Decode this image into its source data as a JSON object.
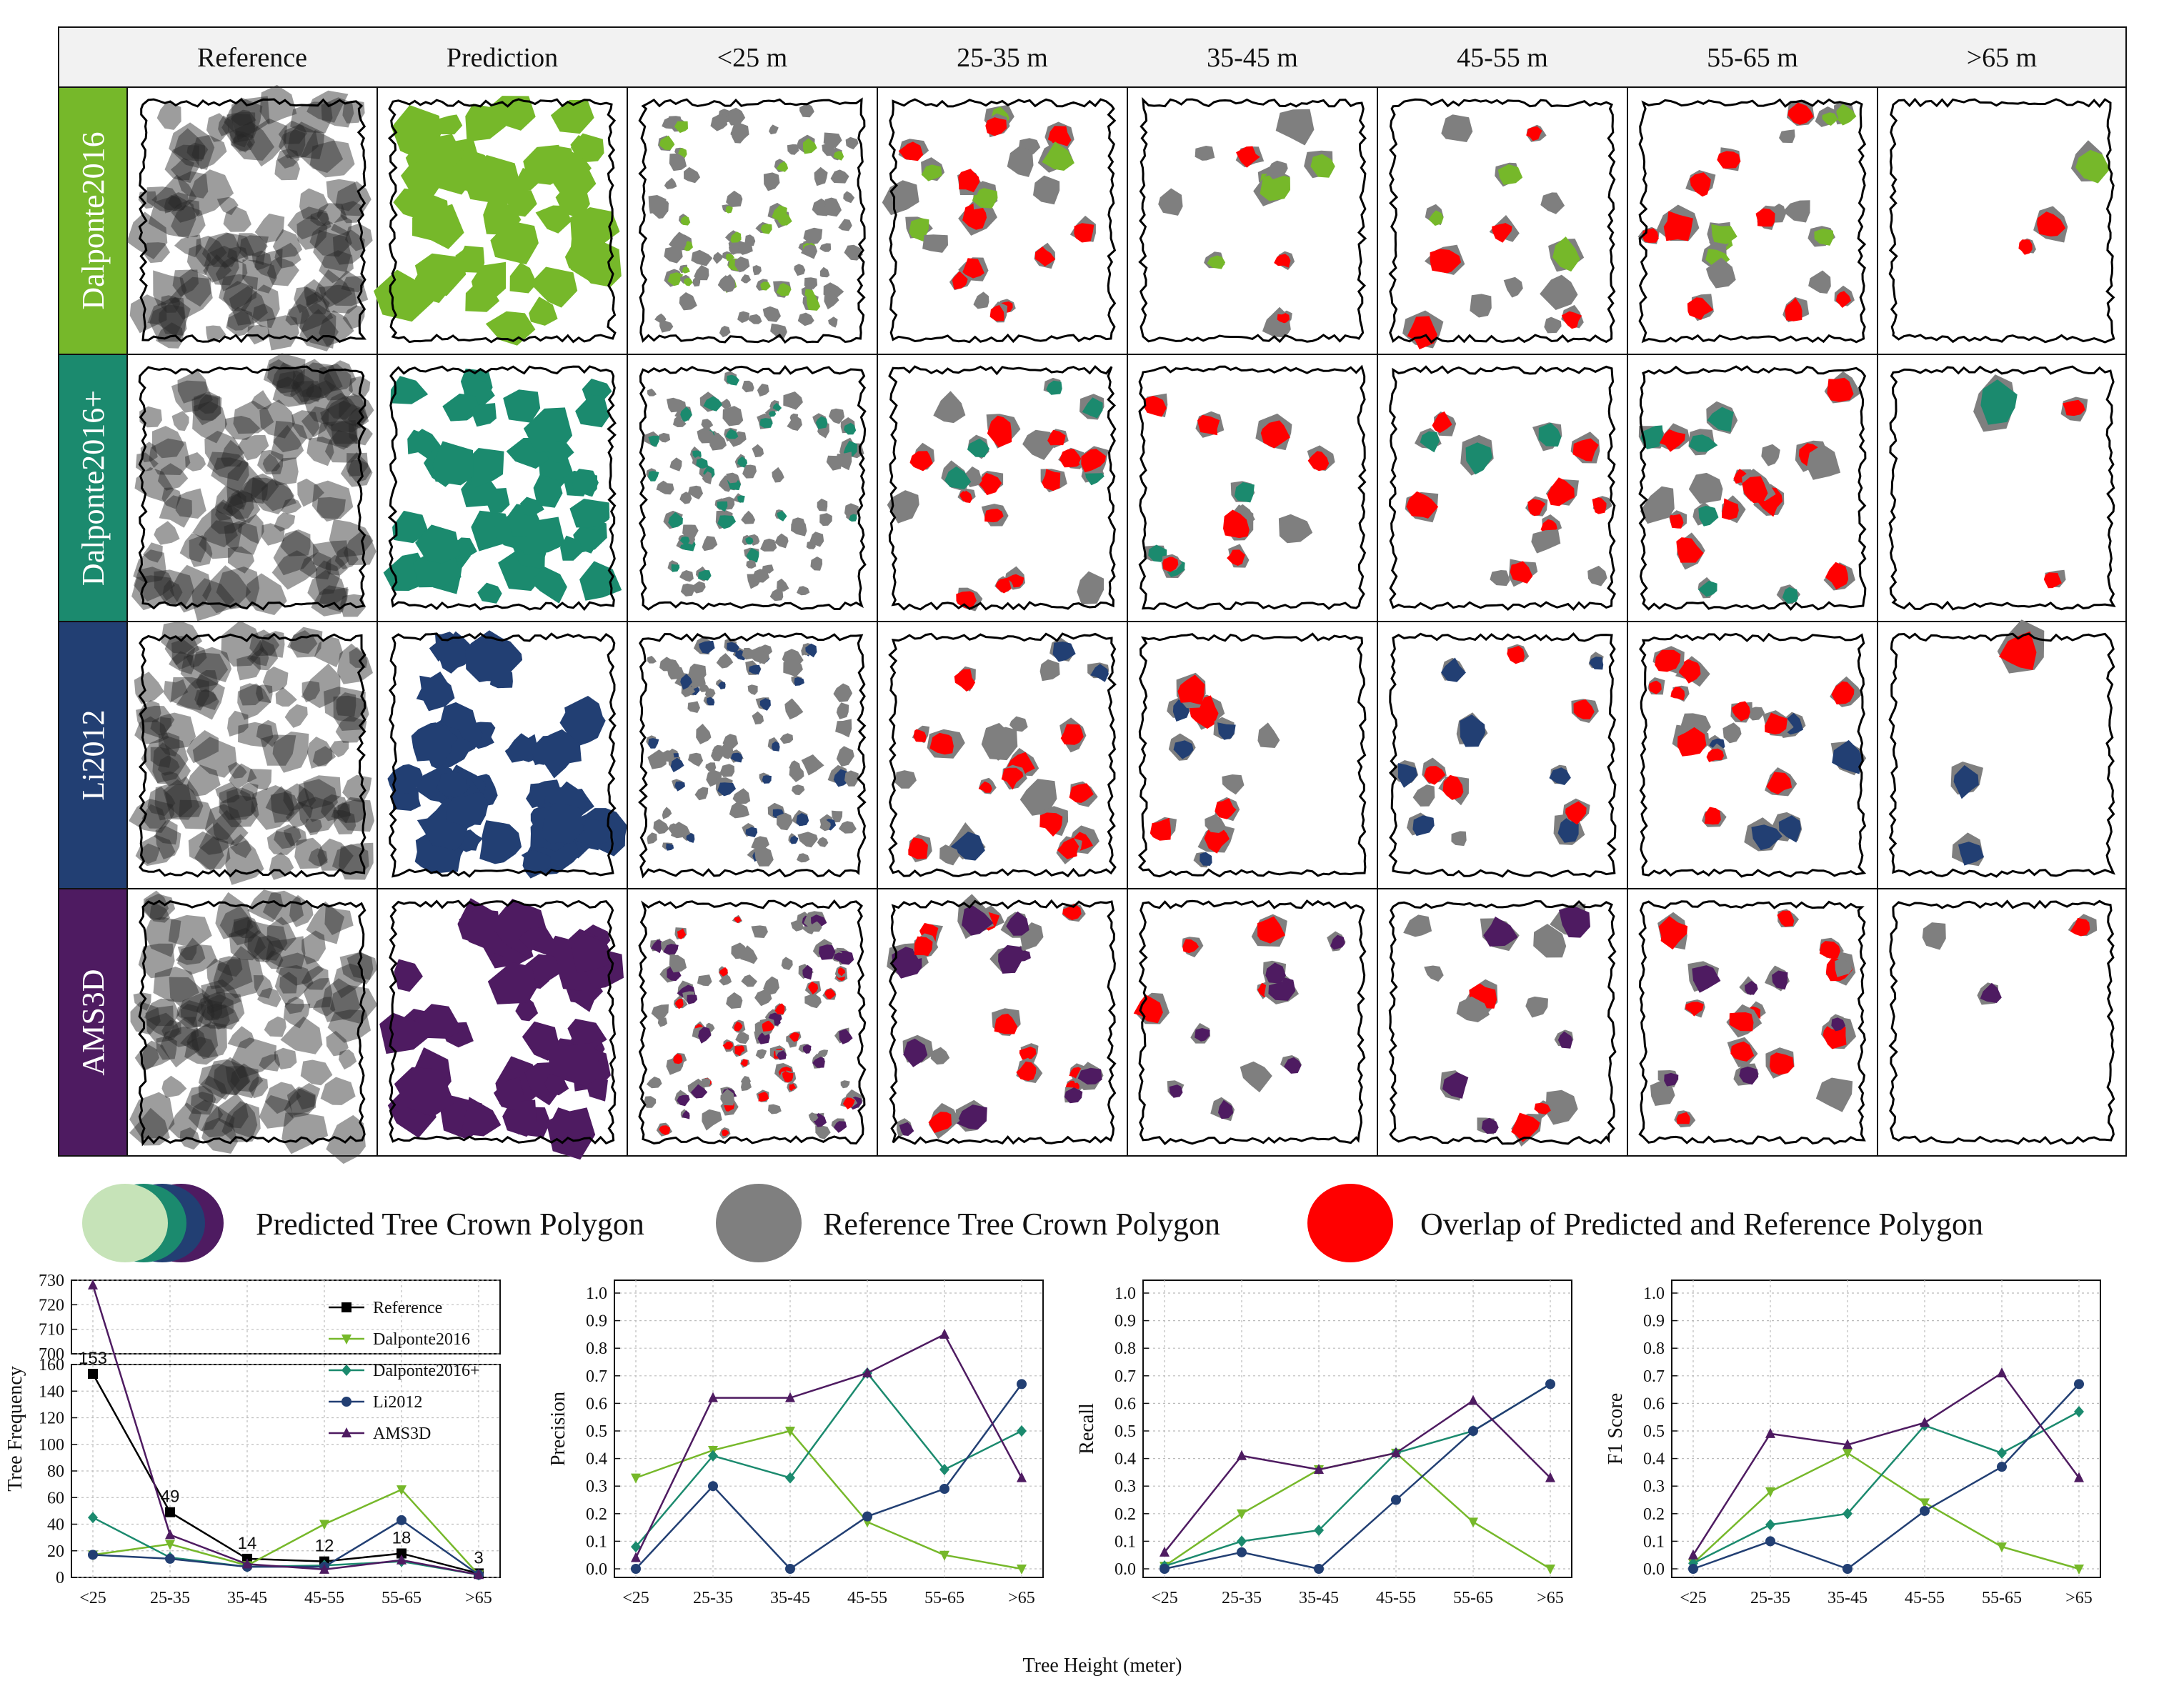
{
  "grid": {
    "headers": [
      "Reference",
      "Prediction",
      "<25 m",
      "25-35 m",
      "35-45 m",
      "45-55 m",
      "55-65 m",
      ">65 m"
    ],
    "rows": [
      {
        "label": "Dalponte2016",
        "color": "#76b82a"
      },
      {
        "label": "Dalponte2016+",
        "color": "#1b8a6e"
      },
      {
        "label": "Li2012",
        "color": "#223f73"
      },
      {
        "label": "AMS3D",
        "color": "#4e1b61"
      }
    ],
    "colors": {
      "reference": "#7f7f7f",
      "overlap": "#ff0000",
      "reference_dark": "#262626"
    }
  },
  "legend": {
    "predicted": "Predicted Tree Crown Polygon",
    "reference": "Reference Tree Crown Polygon",
    "overlap": "Overlap of Predicted and Reference Polygon",
    "predicted_swatch_colors": [
      "#c6e3b8",
      "#1b8a6e",
      "#223f73",
      "#4e1b61"
    ]
  },
  "chart_data": [
    {
      "type": "line",
      "ylabel": "Tree Frequency",
      "categories": [
        "<25",
        "25-35",
        "35-45",
        "45-55",
        "55-65",
        ">65"
      ],
      "y_scale": "broken",
      "ylim_lower": [
        0,
        160
      ],
      "ylim_upper": [
        700,
        730
      ],
      "yticks": [
        0,
        20,
        40,
        60,
        80,
        100,
        120,
        140,
        160,
        700,
        710,
        720,
        730
      ],
      "grid": true,
      "legend_position": "top-right",
      "series": [
        {
          "name": "Reference",
          "color": "#000000",
          "marker": "square",
          "values": [
            153,
            49,
            14,
            12,
            18,
            3
          ]
        },
        {
          "name": "Dalponte2016",
          "color": "#76b82a",
          "marker": "triangle-down",
          "values": [
            17,
            25,
            9,
            40,
            66,
            2
          ]
        },
        {
          "name": "Dalponte2016+",
          "color": "#1b8a6e",
          "marker": "diamond",
          "values": [
            45,
            15,
            8,
            9,
            12,
            2
          ]
        },
        {
          "name": "Li2012",
          "color": "#223f73",
          "marker": "circle",
          "values": [
            17,
            14,
            8,
            8,
            43,
            2
          ]
        },
        {
          "name": "AMS3D",
          "color": "#4e1b61",
          "marker": "triangle-up",
          "values": [
            728,
            32,
            10,
            6,
            13,
            2
          ]
        }
      ],
      "data_labels": [
        "153",
        "49",
        "14",
        "12",
        "18",
        "3"
      ]
    },
    {
      "type": "line",
      "ylabel": "Precision",
      "categories": [
        "<25",
        "25-35",
        "35-45",
        "45-55",
        "55-65",
        ">65"
      ],
      "ylim": [
        0,
        1.0
      ],
      "yticks": [
        "0.0",
        "0.1",
        "0.2",
        "0.3",
        "0.4",
        "0.5",
        "0.6",
        "0.7",
        "0.8",
        "0.9",
        "1.0"
      ],
      "grid": true,
      "series": [
        {
          "name": "Dalponte2016",
          "color": "#76b82a",
          "marker": "triangle-down",
          "values": [
            0.33,
            0.43,
            0.5,
            0.17,
            0.05,
            0.0
          ]
        },
        {
          "name": "Dalponte2016+",
          "color": "#1b8a6e",
          "marker": "diamond",
          "values": [
            0.08,
            0.41,
            0.33,
            0.71,
            0.36,
            0.5
          ]
        },
        {
          "name": "Li2012",
          "color": "#223f73",
          "marker": "circle",
          "values": [
            0.0,
            0.3,
            0.0,
            0.19,
            0.29,
            0.67
          ]
        },
        {
          "name": "AMS3D",
          "color": "#4e1b61",
          "marker": "triangle-up",
          "values": [
            0.04,
            0.62,
            0.62,
            0.71,
            0.85,
            0.33
          ]
        }
      ]
    },
    {
      "type": "line",
      "ylabel": "Recall",
      "categories": [
        "<25",
        "25-35",
        "35-45",
        "45-55",
        "55-65",
        ">65"
      ],
      "ylim": [
        0,
        1.0
      ],
      "yticks": [
        "0.0",
        "0.1",
        "0.2",
        "0.3",
        "0.4",
        "0.5",
        "0.6",
        "0.7",
        "0.8",
        "0.9",
        "1.0"
      ],
      "grid": true,
      "series": [
        {
          "name": "Dalponte2016",
          "color": "#76b82a",
          "marker": "triangle-down",
          "values": [
            0.01,
            0.2,
            0.36,
            0.42,
            0.17,
            0.0
          ]
        },
        {
          "name": "Dalponte2016+",
          "color": "#1b8a6e",
          "marker": "diamond",
          "values": [
            0.01,
            0.1,
            0.14,
            0.42,
            0.5,
            0.67
          ]
        },
        {
          "name": "Li2012",
          "color": "#223f73",
          "marker": "circle",
          "values": [
            0.0,
            0.06,
            0.0,
            0.25,
            0.5,
            0.67
          ]
        },
        {
          "name": "AMS3D",
          "color": "#4e1b61",
          "marker": "triangle-up",
          "values": [
            0.06,
            0.41,
            0.36,
            0.42,
            0.61,
            0.33
          ]
        }
      ]
    },
    {
      "type": "line",
      "ylabel": "F1 Score",
      "categories": [
        "<25",
        "25-35",
        "35-45",
        "45-55",
        "55-65",
        ">65"
      ],
      "ylim": [
        0,
        1.0
      ],
      "yticks": [
        "0.0",
        "0.1",
        "0.2",
        "0.3",
        "0.4",
        "0.5",
        "0.6",
        "0.7",
        "0.8",
        "0.9",
        "1.0"
      ],
      "grid": true,
      "series": [
        {
          "name": "Dalponte2016",
          "color": "#76b82a",
          "marker": "triangle-down",
          "values": [
            0.02,
            0.28,
            0.42,
            0.24,
            0.08,
            0.0
          ]
        },
        {
          "name": "Dalponte2016+",
          "color": "#1b8a6e",
          "marker": "diamond",
          "values": [
            0.02,
            0.16,
            0.2,
            0.52,
            0.42,
            0.57
          ]
        },
        {
          "name": "Li2012",
          "color": "#223f73",
          "marker": "circle",
          "values": [
            0.0,
            0.1,
            0.0,
            0.21,
            0.37,
            0.67
          ]
        },
        {
          "name": "AMS3D",
          "color": "#4e1b61",
          "marker": "triangle-up",
          "values": [
            0.05,
            0.49,
            0.45,
            0.53,
            0.71,
            0.33
          ]
        }
      ]
    }
  ],
  "shared_xlabel": "Tree Height (meter)"
}
